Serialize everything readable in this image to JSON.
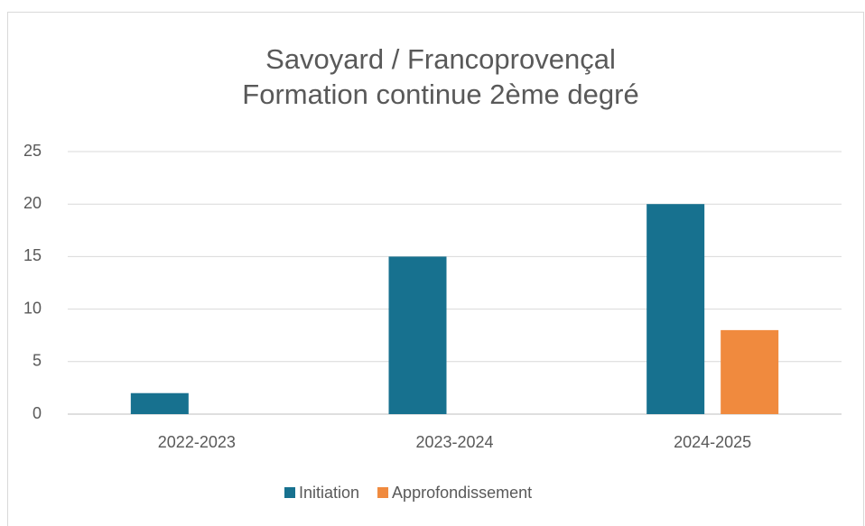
{
  "chart_data": {
    "type": "bar",
    "title": [
      "Savoyard / Francoprovençal",
      "Formation continue 2ème degré"
    ],
    "categories": [
      "2022-2023",
      "2023-2024",
      "2024-2025"
    ],
    "series": [
      {
        "name": "Initiation",
        "color": "#17718f",
        "values": [
          2,
          15,
          20
        ]
      },
      {
        "name": "Approfondissement",
        "color": "#f08a3e",
        "values": [
          null,
          null,
          8
        ]
      }
    ],
    "ylim": [
      0,
      25
    ],
    "yticks": [
      0,
      5,
      10,
      15,
      20,
      25
    ],
    "grid": true,
    "legend": "bottom"
  }
}
